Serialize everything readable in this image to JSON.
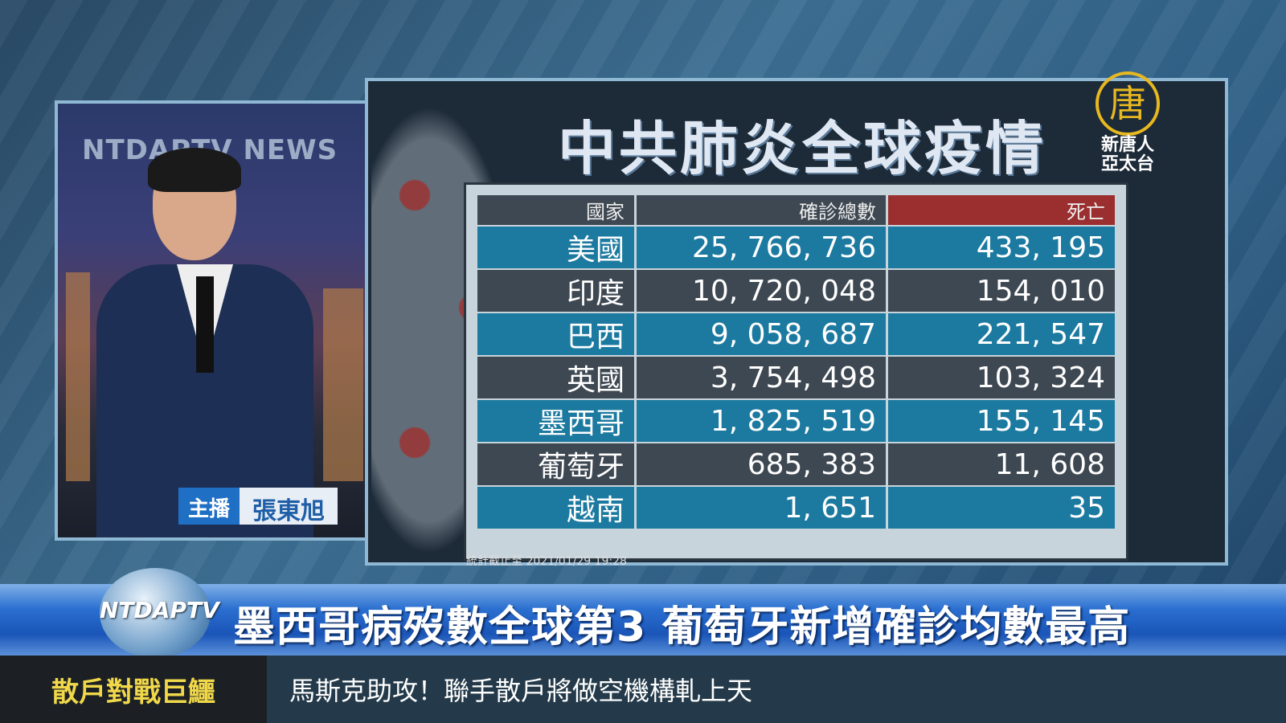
{
  "anchor": {
    "backdrop_text": "NTDAPTV NEWS",
    "role": "主播",
    "name": "張東旭"
  },
  "panel": {
    "title": "中共肺炎全球疫情",
    "logo": {
      "glyph": "唐",
      "text_line1": "新唐人",
      "text_line2": "亞太台",
      "color": "#e8b820"
    },
    "table": {
      "headers": [
        "國家",
        "確診總數",
        "死亡"
      ],
      "rows": [
        {
          "country": "美國",
          "confirmed": "25, 766, 736",
          "deaths": "433, 195"
        },
        {
          "country": "印度",
          "confirmed": "10, 720, 048",
          "deaths": "154, 010"
        },
        {
          "country": "巴西",
          "confirmed": "9, 058, 687",
          "deaths": "221, 547"
        },
        {
          "country": "英國",
          "confirmed": "3, 754, 498",
          "deaths": "103, 324"
        },
        {
          "country": "墨西哥",
          "confirmed": "1, 825, 519",
          "deaths": "155, 145"
        },
        {
          "country": "葡萄牙",
          "confirmed": "685, 383",
          "deaths": "11, 608"
        },
        {
          "country": "越南",
          "confirmed": "1, 651",
          "deaths": "35"
        }
      ]
    },
    "footnote": "統計截止至 2021/01/29 19:28"
  },
  "lower_third": {
    "channel_logo": "NTDAPTV",
    "headline": "墨西哥病歿數全球第3  葡萄牙新增確診均數最高"
  },
  "ticker": {
    "label": "散戶對戰巨鱷",
    "text": "馬斯克助攻！聯手散戶將做空機構軋上天"
  }
}
